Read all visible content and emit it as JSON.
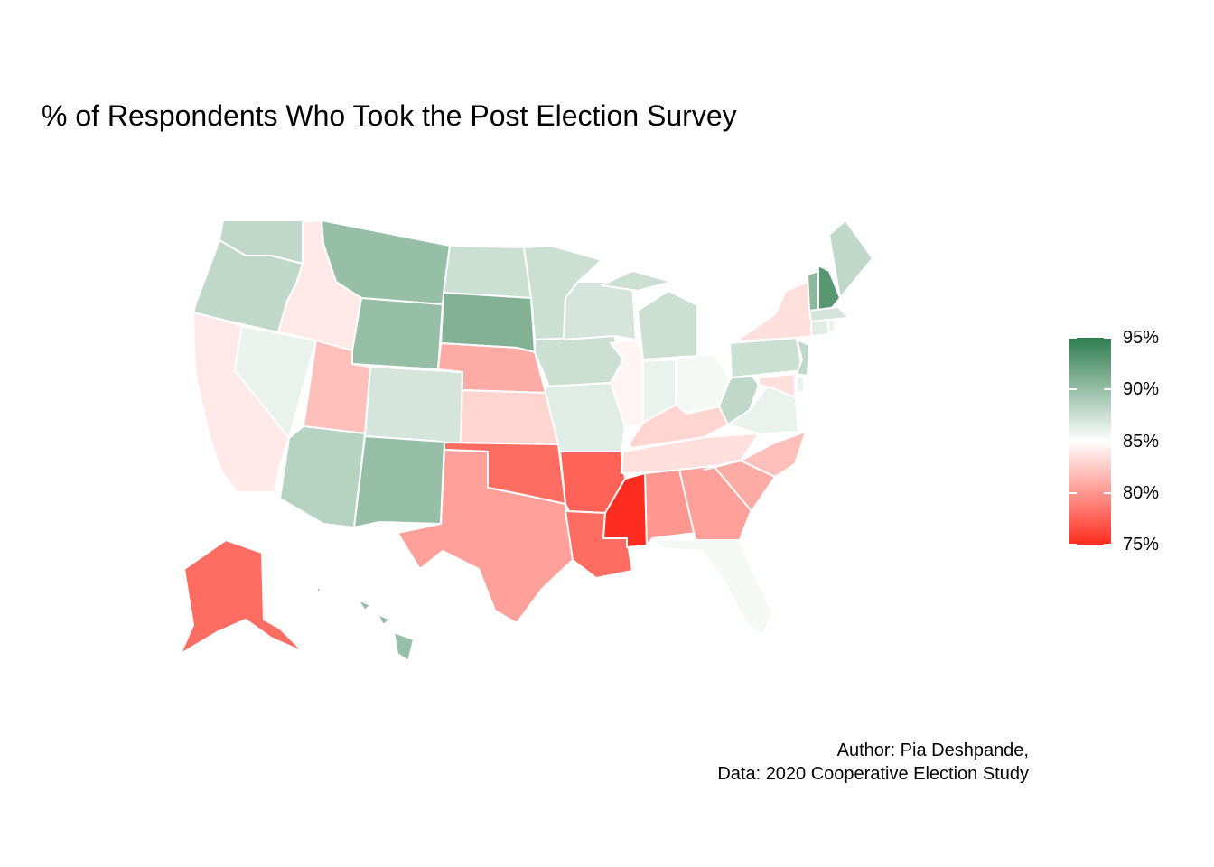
{
  "title": "% of Respondents Who Took the Post Election Survey",
  "caption": {
    "line1": "Author: Pia Deshpande,",
    "line2": "Data: 2020 Cooperative Election Study"
  },
  "legend": {
    "ticks": [
      "95%",
      "90%",
      "85%",
      "80%",
      "75%"
    ],
    "low_color": "#ff2d1f",
    "mid_color": "#ffffff",
    "high_color": "#2e7d4f"
  },
  "map_data": {
    "type": "choropleth",
    "scale_min": 75,
    "scale_mid": 85,
    "scale_max": 95,
    "states": {
      "WA": 88,
      "OR": 88,
      "CA": 84,
      "NV": 86,
      "ID": 84,
      "MT": 90,
      "WY": 90,
      "UT": 82,
      "AZ": 88.5,
      "CO": 87,
      "NM": 90,
      "ND": 87.5,
      "SD": 91,
      "NE": 81,
      "KS": 83,
      "OK": 78,
      "TX": 80.5,
      "MN": 87.5,
      "IA": 87.5,
      "MO": 86.5,
      "AR": 77.5,
      "LA": 78,
      "WI": 87,
      "IL": 84.5,
      "MS": 75,
      "MI": 87.5,
      "IN": 86,
      "OH": 85.5,
      "KY": 83,
      "TN": 83.5,
      "AL": 80,
      "GA": 80.5,
      "FL": 85.5,
      "SC": 81,
      "NC": 82,
      "VA": 86,
      "WV": 88,
      "PA": 87.5,
      "NY": 83.5,
      "ME": 88,
      "VT": 90.5,
      "NH": 93,
      "MA": 87,
      "CT": 86.5,
      "NJ": 88,
      "MD": 83.5,
      "DE": 86,
      "RI": 86,
      "AK": 78,
      "HI": 90
    }
  }
}
